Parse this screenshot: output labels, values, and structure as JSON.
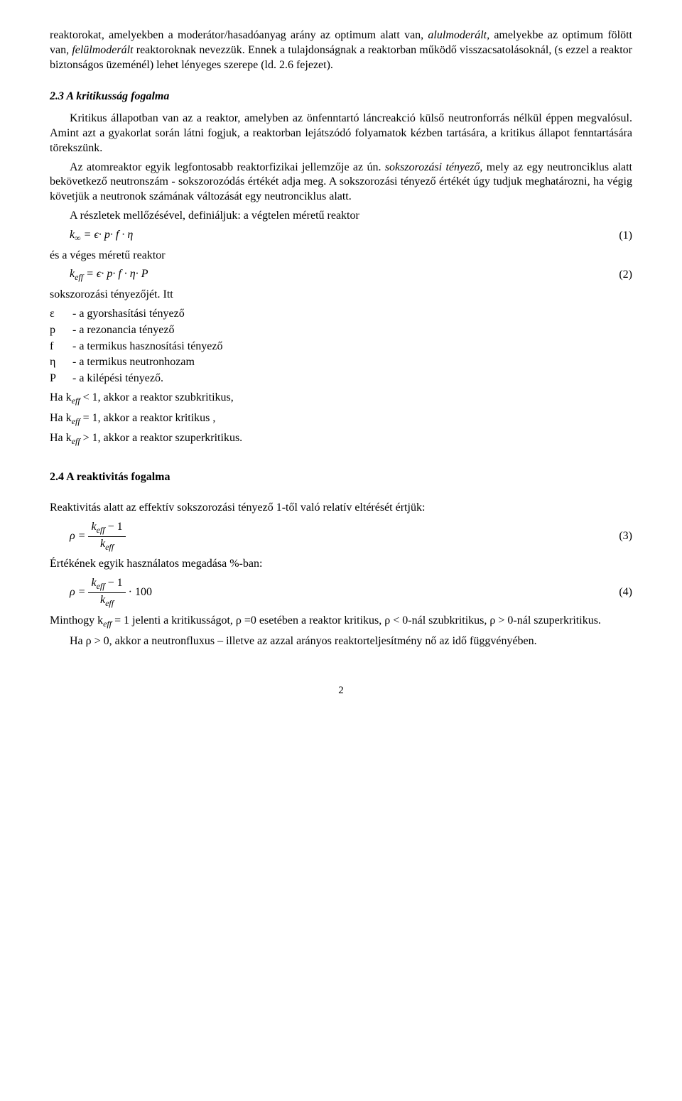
{
  "para1a": "reaktorokat, amelyekben a moderátor/hasadóanyag arány az optimum alatt van, ",
  "para1b": "alulmoderált,",
  "para1c": " amelyekbe az optimum fölött van, ",
  "para1d": "felülmoderált",
  "para1e": " reaktoroknak nevezzük. Ennek a tulajdonságnak a reaktorban működő visszacsatolásoknál, (s ezzel a reaktor biztonságos üzeménél) lehet lényeges szerepe (ld. 2.6 fejezet).",
  "sec23_title": "2.3 A kritikusság fogalma",
  "para2": "Kritikus állapotban van az a reaktor, amelyben az önfenntartó láncreakció külső neutronforrás nélkül éppen megvalósul. Amint azt a gyakorlat során látni fogjuk, a reaktorban lejátszódó folyamatok kézben tartására, a kritikus állapot fenntartására törekszünk.",
  "para3a": "Az atomreaktor egyik legfontosabb reaktorfizikai jellemzője az ún. ",
  "para3b": "sokszorozási tényező",
  "para3c": ", mely az egy neutronciklus alatt bekövetkező neutronszám - sokszorozódás értékét adja meg. A sokszorozási tényező értékét úgy tudjuk meghatározni, ha végig követjük a neutronok számának változását egy neutronciklus alatt.",
  "para4": "A részletek mellőzésével, definiáljuk: a végtelen méretű reaktor",
  "eq1": "k∞ = ϵ· p· f · η",
  "eq1_num": "(1)",
  "para5": "és a véges méretű reaktor",
  "eq2": "keff = ϵ· p· f · η· P",
  "eq2_num": "(2)",
  "para6": "sokszorozási tényezőjét. Itt",
  "defs": [
    {
      "sym": "ε",
      "txt": "- a gyorshasítási tényező"
    },
    {
      "sym": "p",
      "txt": "- a rezonancia tényező"
    },
    {
      "sym": "f",
      "txt": "- a termikus hasznosítási tényező"
    },
    {
      "sym": "η",
      "txt": "- a termikus neutronhozam"
    },
    {
      "sym": "P",
      "txt": "- a kilépési tényező."
    }
  ],
  "cond1a": "Ha k",
  "cond1b": " < 1, akkor a reaktor szubkritikus,",
  "cond2a": "Ha k",
  "cond2b": " = 1, akkor a reaktor kritikus ,",
  "cond3a": "Ha k",
  "cond3b": " > 1, akkor a reaktor szuperkritikus.",
  "sub_eff": "eff",
  "sec24_title": "2.4 A reaktivitás fogalma",
  "para7": "Reaktivitás alatt az effektív sokszorozási tényező 1-től való relatív eltérését értjük:",
  "eq3_rho": "ρ =",
  "eq3_num_top_a": "k",
  "eq3_num_top_b": " − 1",
  "eq3_den_a": "k",
  "eq3_label": "(3)",
  "para8": "Értékének egyik használatos megadása %-ban:",
  "eq4_tail": " · 100",
  "eq4_label": "(4)",
  "para9a": "Minthogy k",
  "para9b": " = 1 jelenti a kritikusságot, ρ  =0 esetében a reaktor kritikus, ρ  < 0-nál szubkritikus, ρ  > 0-nál szuperkritikus.",
  "para10": "Ha ρ  > 0, akkor a neutronfluxus – illetve az azzal arányos reaktorteljesítmény nő az idő függvényében.",
  "page_number": "2"
}
